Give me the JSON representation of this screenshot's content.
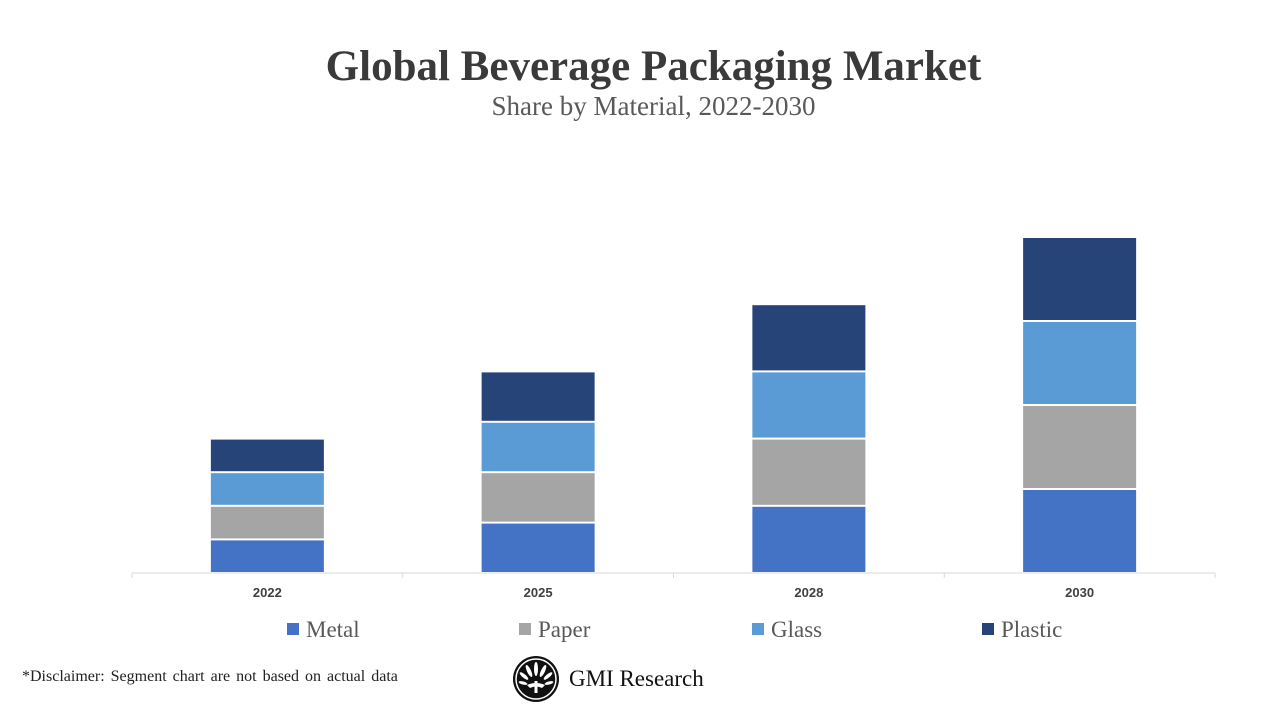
{
  "chart_data": {
    "type": "bar",
    "stacked": true,
    "title": "Global Beverage Packaging Market",
    "subtitle": "Share by Material, 2022-2030",
    "categories": [
      "2022",
      "2025",
      "2028",
      "2030"
    ],
    "series": [
      {
        "name": "Metal",
        "color": "#4472c4",
        "values": [
          1,
          1.5,
          2,
          2.5
        ]
      },
      {
        "name": "Paper",
        "color": "#a5a5a5",
        "values": [
          1,
          1.5,
          2,
          2.5
        ]
      },
      {
        "name": "Glass",
        "color": "#5b9bd5",
        "values": [
          1,
          1.5,
          2,
          2.5
        ]
      },
      {
        "name": "Plastic",
        "color": "#264478",
        "values": [
          1,
          1.5,
          2,
          2.5
        ]
      }
    ],
    "xlabel": "",
    "ylabel": "",
    "y_axis_visible": false,
    "grid": false,
    "legend": "bottom"
  },
  "footer": {
    "disclaimer": "*Disclaimer:  Segment chart are not based on actual data",
    "brand": "GMI Research"
  }
}
